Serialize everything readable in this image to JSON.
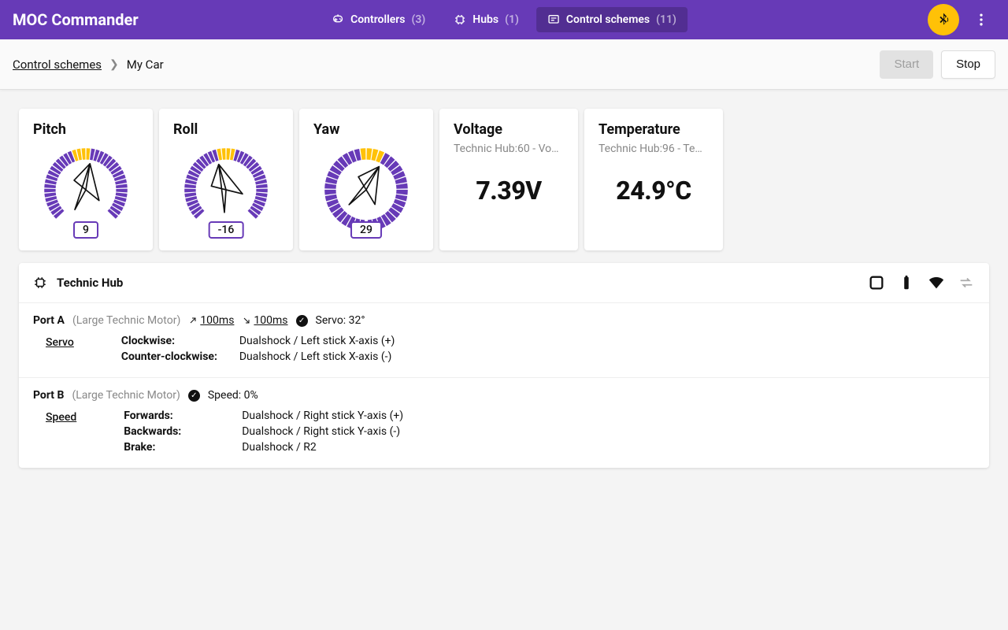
{
  "colors": {
    "primary": "#673ab7",
    "accent": "#ffc107",
    "muted": "#9e9e9e",
    "bg": "#f4f4f4"
  },
  "app": {
    "title": "MOC Commander"
  },
  "nav": {
    "controllers": {
      "label": "Controllers",
      "count": "(3)"
    },
    "hubs": {
      "label": "Hubs",
      "count": "(1)"
    },
    "schemes": {
      "label": "Control schemes",
      "count": "(11)"
    }
  },
  "breadcrumb": {
    "root": "Control schemes",
    "current": "My Car"
  },
  "actions": {
    "start": "Start",
    "stop": "Stop"
  },
  "gauges": {
    "pitch": {
      "title": "Pitch",
      "value": "9",
      "angle": 9,
      "arc_start": -135,
      "arc_end": 135
    },
    "roll": {
      "title": "Roll",
      "value": "-16",
      "angle": -16,
      "arc_start": -135,
      "arc_end": 135
    },
    "yaw": {
      "title": "Yaw",
      "value": "29",
      "angle": 29,
      "arc_start": -178,
      "arc_end": 178
    }
  },
  "info": {
    "voltage": {
      "title": "Voltage",
      "subtitle": "Technic Hub:60 - Vo…",
      "value": "7.39V"
    },
    "temperature": {
      "title": "Temperature",
      "subtitle": "Technic Hub:96 - Te…",
      "value": "24.9°C"
    }
  },
  "hub": {
    "name": "Technic Hub",
    "portA": {
      "id": "Port A",
      "type": "(Large Technic Motor)",
      "accel": "100ms",
      "decel": "100ms",
      "status": "Servo: 32°",
      "mode": "Servo",
      "rows": [
        {
          "label": "Clockwise:",
          "binding": "Dualshock / Left stick X-axis (+)"
        },
        {
          "label": "Counter-clockwise:",
          "binding": "Dualshock / Left stick X-axis (-)"
        }
      ]
    },
    "portB": {
      "id": "Port B",
      "type": "(Large Technic Motor)",
      "status": "Speed: 0%",
      "mode": "Speed",
      "rows": [
        {
          "label": "Forwards:",
          "binding": "Dualshock / Right stick Y-axis (+)"
        },
        {
          "label": "Backwards:",
          "binding": "Dualshock / Right stick Y-axis (-)"
        },
        {
          "label": "Brake:",
          "binding": "Dualshock / R2"
        }
      ]
    }
  }
}
